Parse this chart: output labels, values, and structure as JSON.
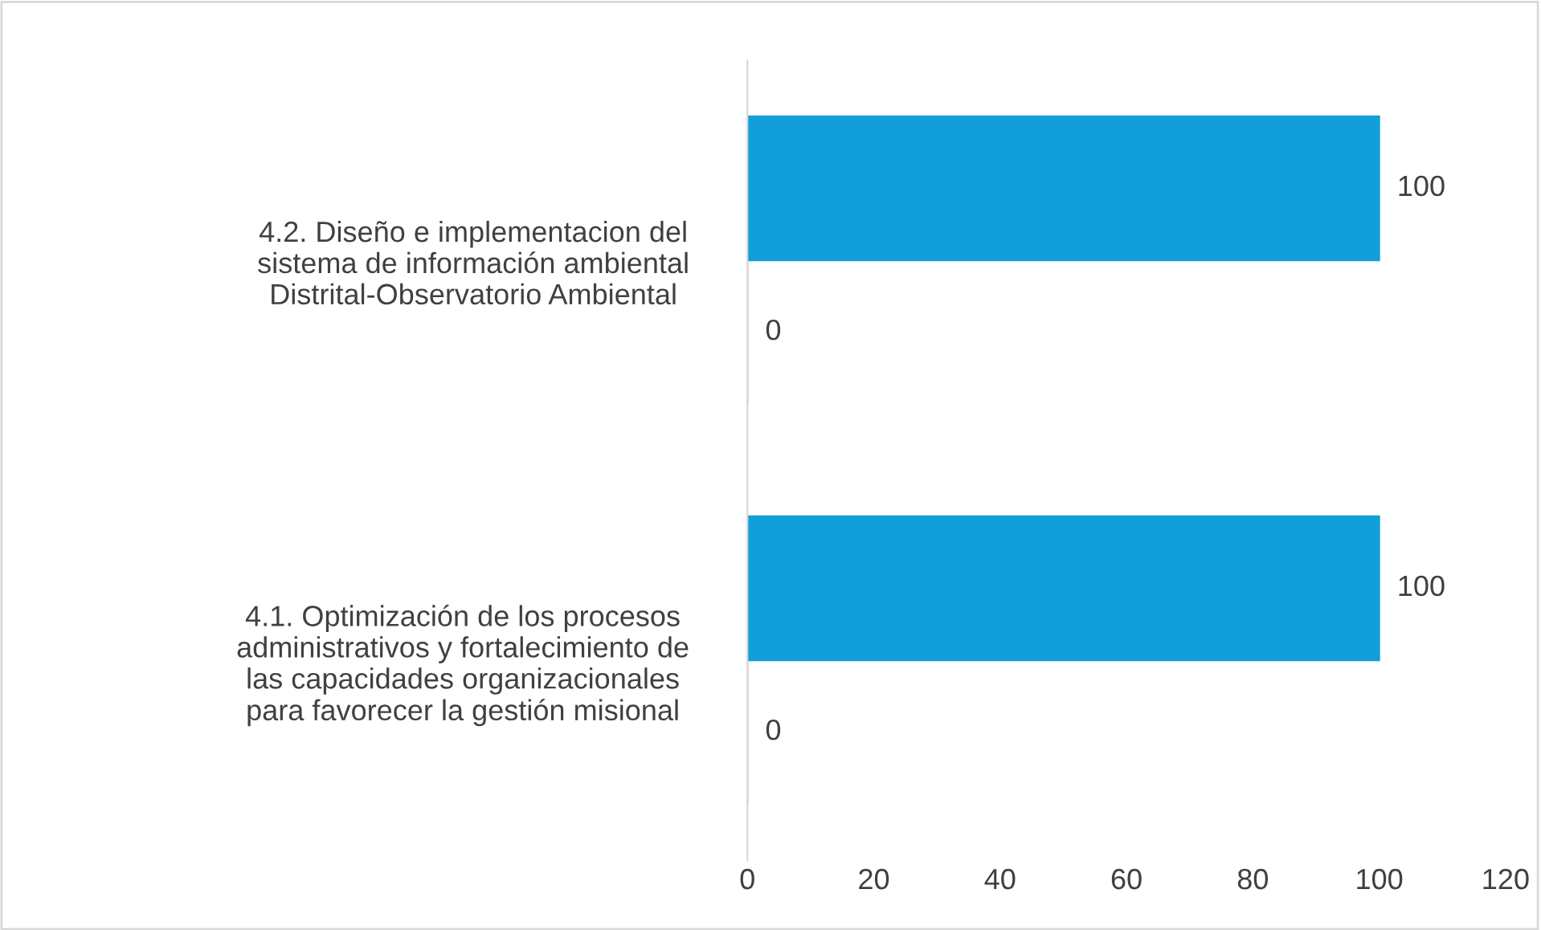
{
  "chart_data": {
    "type": "bar",
    "orientation": "horizontal",
    "categories": [
      "4.2. Diseño e implementacion del\nsistema de información ambiental\nDistrital-Observatorio Ambiental",
      "4.1. Optimización de los procesos\nadministrativos y fortalecimiento de\nlas capacidades organizacionales\npara favorecer la gestión misional"
    ],
    "series": [
      {
        "color": "#129fd9",
        "values": [
          100,
          100
        ]
      },
      {
        "color": "#ed7d31",
        "values": [
          0,
          0
        ]
      }
    ],
    "xlim": [
      0,
      120
    ],
    "xticks": [
      0,
      20,
      40,
      60,
      80,
      100,
      120
    ],
    "data_labels": true,
    "grid": false,
    "legend": false
  }
}
